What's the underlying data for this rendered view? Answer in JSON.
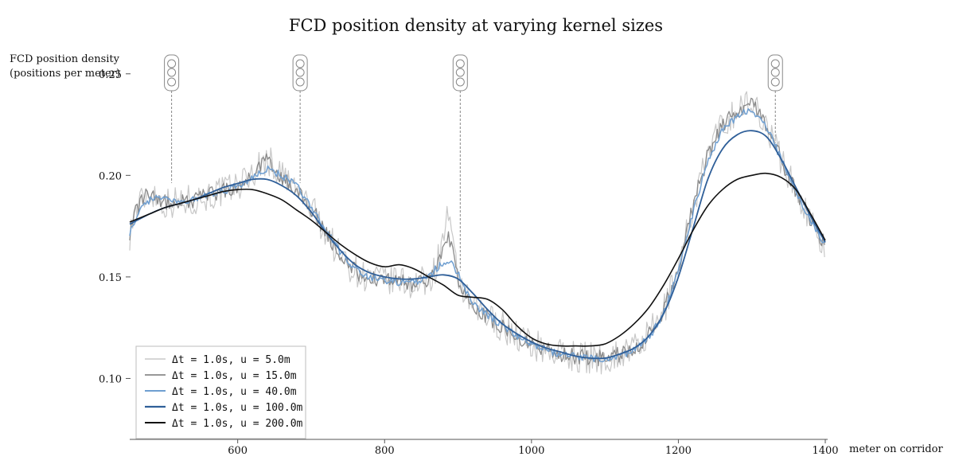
{
  "chart_data": {
    "type": "line",
    "title": "FCD position density at varying kernel sizes",
    "ylabel_line1": "FCD position density",
    "ylabel_line2": "(positions per meter)",
    "xlabel": "meter on corridor",
    "xlim": [
      453,
      1400
    ],
    "ylim": [
      0.07,
      0.255
    ],
    "xticks": [
      600,
      800,
      1000,
      1200,
      1400
    ],
    "xtick_labels": [
      "600",
      "800",
      "1000",
      "1200",
      "1400"
    ],
    "yticks": [
      0.1,
      0.15,
      0.2,
      0.25
    ],
    "ytick_labels": [
      "0.10",
      "0.15",
      "0.20",
      "0.25"
    ],
    "grid": false,
    "legend_position": "lower-left",
    "traffic_lights": [
      {
        "x": 510,
        "icon": "traffic-light-icon"
      },
      {
        "x": 685,
        "icon": "traffic-light-icon"
      },
      {
        "x": 903,
        "icon": "traffic-light-icon"
      },
      {
        "x": 1332,
        "icon": "traffic-light-icon"
      }
    ],
    "series": [
      {
        "name": "Δt = 1.0s, u = 5.0m",
        "color": "#c8c8c8",
        "noise_amplitude": 0.008,
        "x": [
          453,
          460,
          470,
          480,
          490,
          500,
          510,
          520,
          540,
          560,
          580,
          600,
          620,
          640,
          660,
          680,
          700,
          720,
          740,
          760,
          780,
          800,
          820,
          840,
          860,
          870,
          880,
          885,
          890,
          895,
          900,
          910,
          920,
          940,
          960,
          980,
          1000,
          1020,
          1040,
          1060,
          1080,
          1100,
          1120,
          1140,
          1160,
          1180,
          1200,
          1220,
          1240,
          1260,
          1280,
          1290,
          1300,
          1310,
          1320,
          1340,
          1360,
          1380,
          1400
        ],
        "values": [
          0.171,
          0.182,
          0.188,
          0.192,
          0.19,
          0.186,
          0.187,
          0.187,
          0.188,
          0.19,
          0.192,
          0.195,
          0.201,
          0.208,
          0.2,
          0.193,
          0.184,
          0.172,
          0.16,
          0.153,
          0.149,
          0.148,
          0.148,
          0.146,
          0.148,
          0.155,
          0.168,
          0.182,
          0.17,
          0.158,
          0.15,
          0.14,
          0.134,
          0.13,
          0.126,
          0.121,
          0.117,
          0.114,
          0.112,
          0.111,
          0.11,
          0.11,
          0.112,
          0.115,
          0.121,
          0.133,
          0.155,
          0.185,
          0.21,
          0.225,
          0.232,
          0.235,
          0.234,
          0.232,
          0.225,
          0.208,
          0.192,
          0.178,
          0.166
        ]
      },
      {
        "name": "Δt = 1.0s, u = 15.0m",
        "color": "#8a8a8a",
        "noise_amplitude": 0.004,
        "x": [
          453,
          460,
          470,
          480,
          490,
          500,
          510,
          520,
          540,
          560,
          580,
          600,
          620,
          640,
          660,
          680,
          700,
          720,
          740,
          760,
          780,
          800,
          820,
          840,
          860,
          870,
          880,
          885,
          890,
          895,
          900,
          910,
          920,
          940,
          960,
          980,
          1000,
          1020,
          1040,
          1060,
          1080,
          1100,
          1120,
          1140,
          1160,
          1180,
          1200,
          1220,
          1240,
          1260,
          1280,
          1290,
          1300,
          1310,
          1320,
          1340,
          1360,
          1380,
          1400
        ],
        "values": [
          0.172,
          0.181,
          0.188,
          0.192,
          0.19,
          0.187,
          0.187,
          0.187,
          0.188,
          0.19,
          0.192,
          0.195,
          0.2,
          0.207,
          0.199,
          0.192,
          0.184,
          0.172,
          0.16,
          0.153,
          0.149,
          0.148,
          0.148,
          0.146,
          0.149,
          0.156,
          0.166,
          0.17,
          0.166,
          0.158,
          0.15,
          0.14,
          0.134,
          0.13,
          0.126,
          0.121,
          0.117,
          0.114,
          0.112,
          0.111,
          0.11,
          0.11,
          0.112,
          0.115,
          0.121,
          0.133,
          0.155,
          0.185,
          0.21,
          0.225,
          0.232,
          0.234,
          0.234,
          0.232,
          0.225,
          0.208,
          0.192,
          0.178,
          0.166
        ]
      },
      {
        "name": "Δt = 1.0s, u = 40.0m",
        "color": "#6f9fd1",
        "noise_amplitude": 0.0018,
        "x": [
          453,
          460,
          470,
          480,
          490,
          500,
          520,
          540,
          560,
          580,
          600,
          620,
          640,
          660,
          680,
          700,
          720,
          740,
          760,
          780,
          800,
          820,
          840,
          860,
          870,
          880,
          890,
          900,
          910,
          920,
          940,
          960,
          980,
          1000,
          1020,
          1040,
          1060,
          1080,
          1100,
          1120,
          1140,
          1160,
          1180,
          1200,
          1220,
          1240,
          1260,
          1280,
          1290,
          1300,
          1310,
          1320,
          1340,
          1360,
          1380,
          1400
        ],
        "values": [
          0.172,
          0.178,
          0.184,
          0.188,
          0.189,
          0.188,
          0.187,
          0.188,
          0.19,
          0.192,
          0.195,
          0.199,
          0.203,
          0.2,
          0.195,
          0.185,
          0.173,
          0.162,
          0.154,
          0.15,
          0.148,
          0.147,
          0.147,
          0.15,
          0.154,
          0.157,
          0.157,
          0.152,
          0.144,
          0.137,
          0.131,
          0.126,
          0.121,
          0.117,
          0.114,
          0.112,
          0.111,
          0.11,
          0.11,
          0.111,
          0.114,
          0.12,
          0.132,
          0.153,
          0.182,
          0.207,
          0.222,
          0.229,
          0.231,
          0.231,
          0.23,
          0.224,
          0.208,
          0.192,
          0.178,
          0.166
        ]
      },
      {
        "name": "Δt = 1.0s, u = 100.0m",
        "color": "#2f5f99",
        "noise_amplitude": 0,
        "x": [
          453,
          480,
          500,
          520,
          540,
          560,
          580,
          600,
          620,
          640,
          660,
          680,
          700,
          720,
          740,
          760,
          780,
          800,
          820,
          840,
          860,
          880,
          900,
          920,
          940,
          960,
          980,
          1000,
          1020,
          1040,
          1060,
          1080,
          1100,
          1120,
          1140,
          1160,
          1180,
          1200,
          1220,
          1240,
          1260,
          1280,
          1300,
          1320,
          1340,
          1360,
          1380,
          1400
        ],
        "values": [
          0.176,
          0.181,
          0.184,
          0.186,
          0.188,
          0.191,
          0.194,
          0.196,
          0.198,
          0.198,
          0.195,
          0.19,
          0.182,
          0.172,
          0.163,
          0.156,
          0.152,
          0.15,
          0.149,
          0.149,
          0.15,
          0.151,
          0.149,
          0.142,
          0.134,
          0.127,
          0.122,
          0.118,
          0.115,
          0.113,
          0.111,
          0.11,
          0.11,
          0.112,
          0.115,
          0.121,
          0.132,
          0.15,
          0.174,
          0.198,
          0.213,
          0.22,
          0.222,
          0.219,
          0.208,
          0.194,
          0.18,
          0.167
        ]
      },
      {
        "name": "Δt = 1.0s, u = 200.0m",
        "color": "#111111",
        "noise_amplitude": 0,
        "x": [
          453,
          480,
          500,
          520,
          540,
          560,
          580,
          600,
          620,
          640,
          660,
          680,
          700,
          720,
          740,
          760,
          780,
          800,
          820,
          840,
          860,
          880,
          900,
          920,
          940,
          960,
          980,
          1000,
          1020,
          1040,
          1060,
          1080,
          1100,
          1120,
          1140,
          1160,
          1180,
          1200,
          1220,
          1240,
          1260,
          1280,
          1300,
          1320,
          1340,
          1360,
          1380,
          1400
        ],
        "values": [
          0.177,
          0.181,
          0.184,
          0.186,
          0.188,
          0.19,
          0.192,
          0.193,
          0.193,
          0.191,
          0.188,
          0.183,
          0.178,
          0.172,
          0.166,
          0.161,
          0.157,
          0.155,
          0.156,
          0.154,
          0.15,
          0.146,
          0.141,
          0.14,
          0.139,
          0.134,
          0.126,
          0.12,
          0.117,
          0.116,
          0.116,
          0.116,
          0.117,
          0.121,
          0.127,
          0.135,
          0.146,
          0.159,
          0.173,
          0.185,
          0.193,
          0.198,
          0.2,
          0.201,
          0.199,
          0.193,
          0.181,
          0.168
        ]
      }
    ]
  }
}
